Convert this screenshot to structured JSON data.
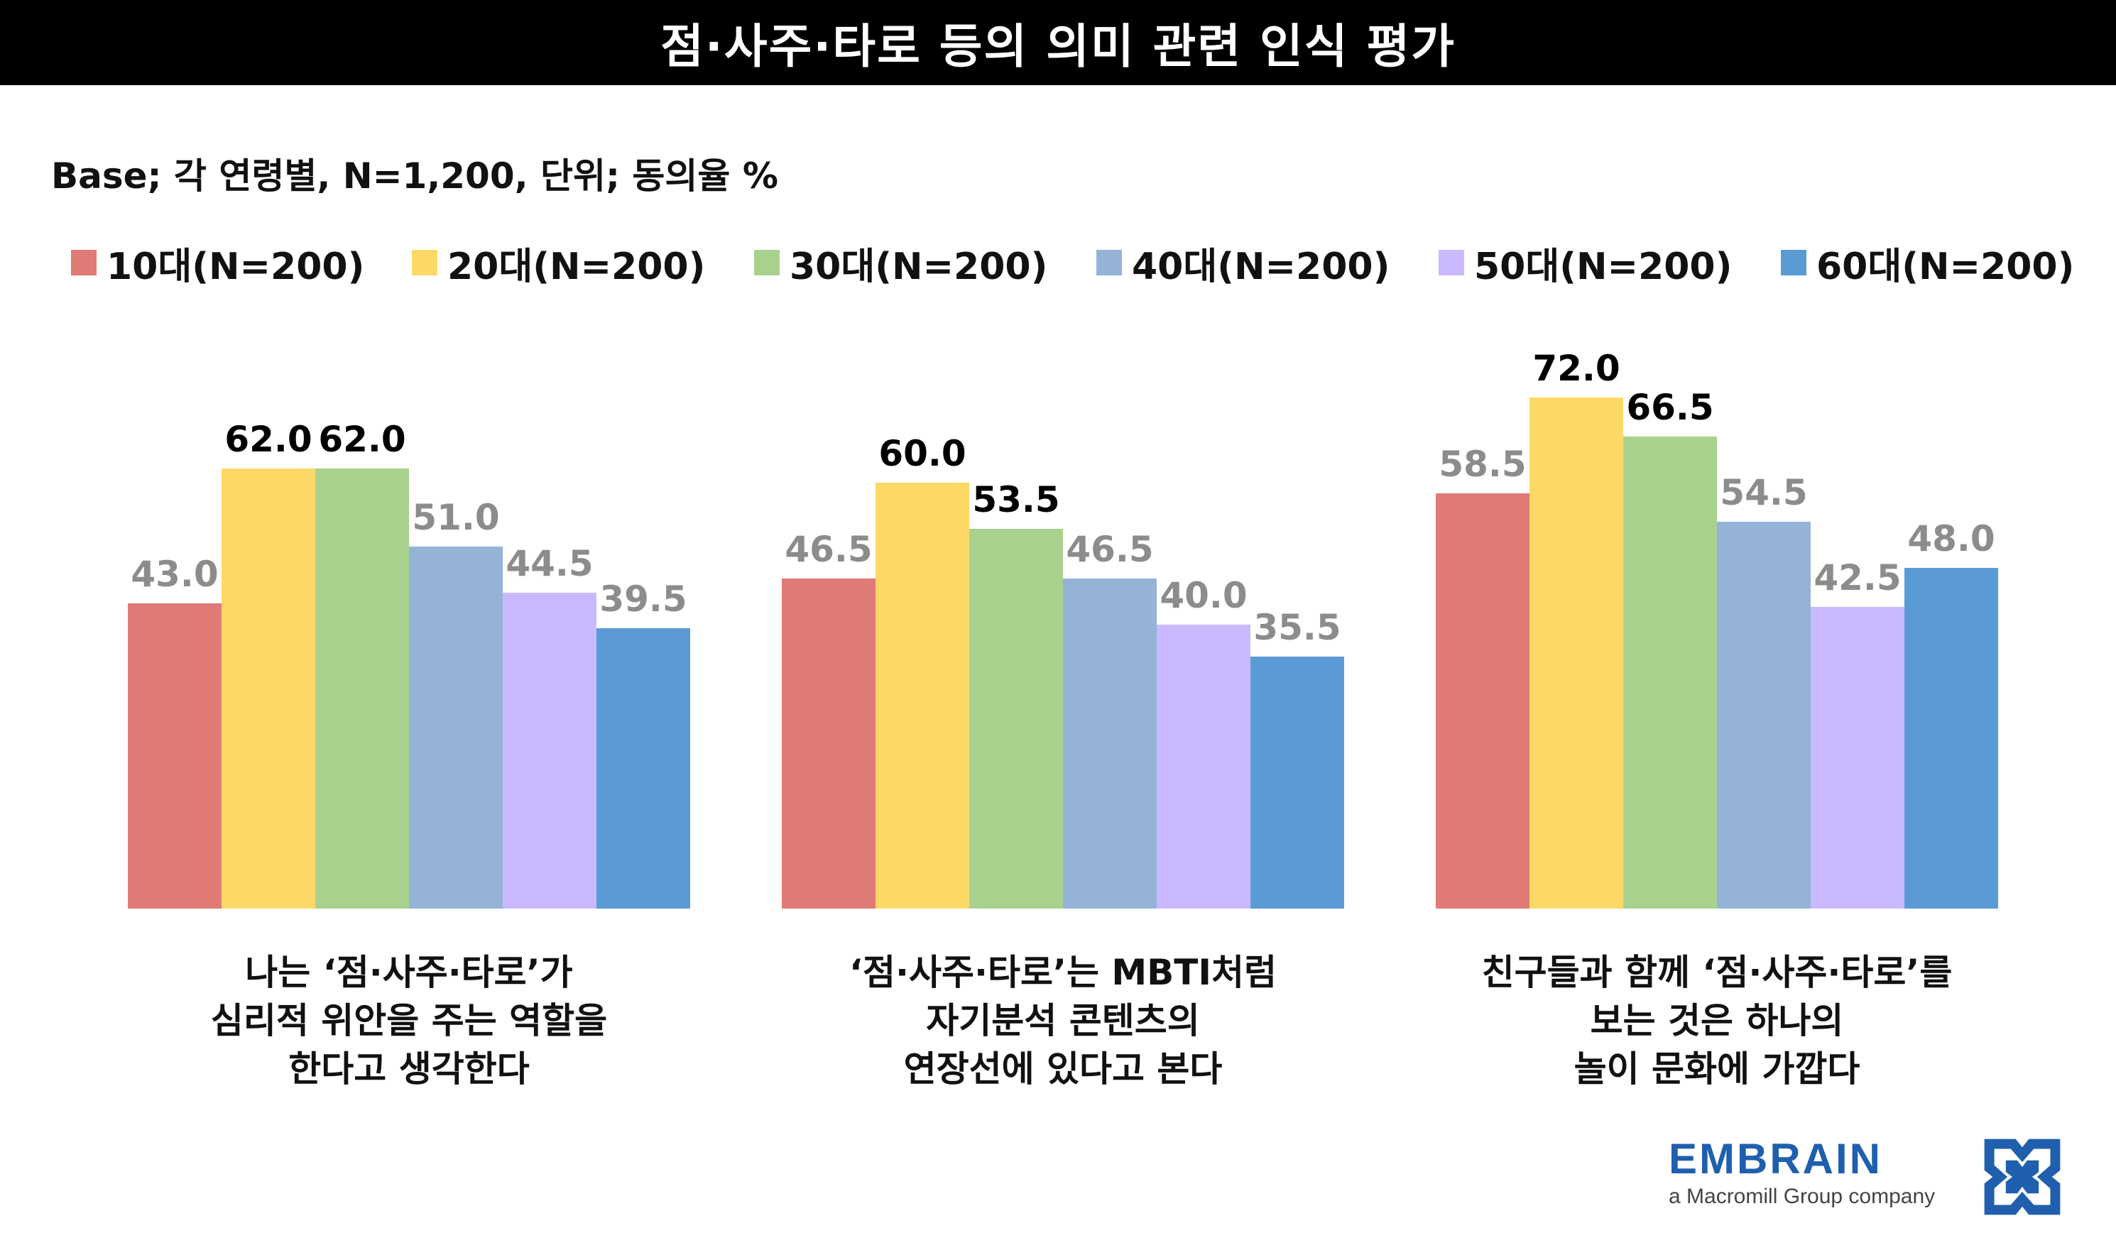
{
  "title": "점·사주·타로 등의 의미 관련 인식 평가",
  "base_note": "Base; 각 연령별, N=1,200, 단위; 동의율 %",
  "brand": {
    "name": "EMBRAIN",
    "tagline": "a Macromill Group company",
    "logo_icon": "embrain-logo-icon"
  },
  "chart_data": {
    "type": "bar",
    "title": "점·사주·타로 등의 의미 관련 인식 평가",
    "ylabel": "동의율 %",
    "ylim": [
      0,
      100
    ],
    "grid": false,
    "legend_position": "top",
    "categories": [
      [
        "나는 ‘점·사주·타로’가",
        "심리적 위안을 주는 역할을",
        "한다고 생각한다"
      ],
      [
        "‘점·사주·타로’는 MBTI처럼",
        "자기분석 콘텐츠의",
        "연장선에 있다고 본다"
      ],
      [
        "친구들과 함께 ‘점·사주·타로’를",
        "보는 것은 하나의",
        "놀이 문화에 가깝다"
      ]
    ],
    "series": [
      {
        "name": "10대(N=200)",
        "color": "#e07a76",
        "values": [
          43.0,
          46.5,
          58.5
        ],
        "labels": [
          "43.0",
          "46.5",
          "58.5"
        ]
      },
      {
        "name": "20대(N=200)",
        "color": "#fcd966",
        "values": [
          62.0,
          60.0,
          72.0
        ],
        "labels": [
          "62.0",
          "60.0",
          "72.0"
        ]
      },
      {
        "name": "30대(N=200)",
        "color": "#a9d18e",
        "values": [
          62.0,
          53.5,
          66.5
        ],
        "labels": [
          "62.0",
          "53.5",
          "66.5"
        ]
      },
      {
        "name": "40대(N=200)",
        "color": "#95b3d7",
        "values": [
          51.0,
          46.5,
          54.5
        ],
        "labels": [
          "51.0",
          "46.5",
          "54.5"
        ]
      },
      {
        "name": "50대(N=200)",
        "color": "#cbb9ff",
        "values": [
          44.5,
          40.0,
          42.5
        ],
        "labels": [
          "44.5",
          "40.0",
          "42.5"
        ]
      },
      {
        "name": "60대(N=200)",
        "color": "#5b9bd5",
        "values": [
          39.5,
          35.5,
          48.0
        ],
        "labels": [
          "39.5",
          "35.5",
          "48.0"
        ]
      }
    ],
    "emphasis": [
      [
        false,
        true,
        true,
        false,
        false,
        false
      ],
      [
        false,
        true,
        true,
        false,
        false,
        false
      ],
      [
        false,
        true,
        true,
        false,
        false,
        false
      ]
    ],
    "label_colors": {
      "emphasis": "#000000",
      "normal": "#8c8c8c"
    }
  }
}
